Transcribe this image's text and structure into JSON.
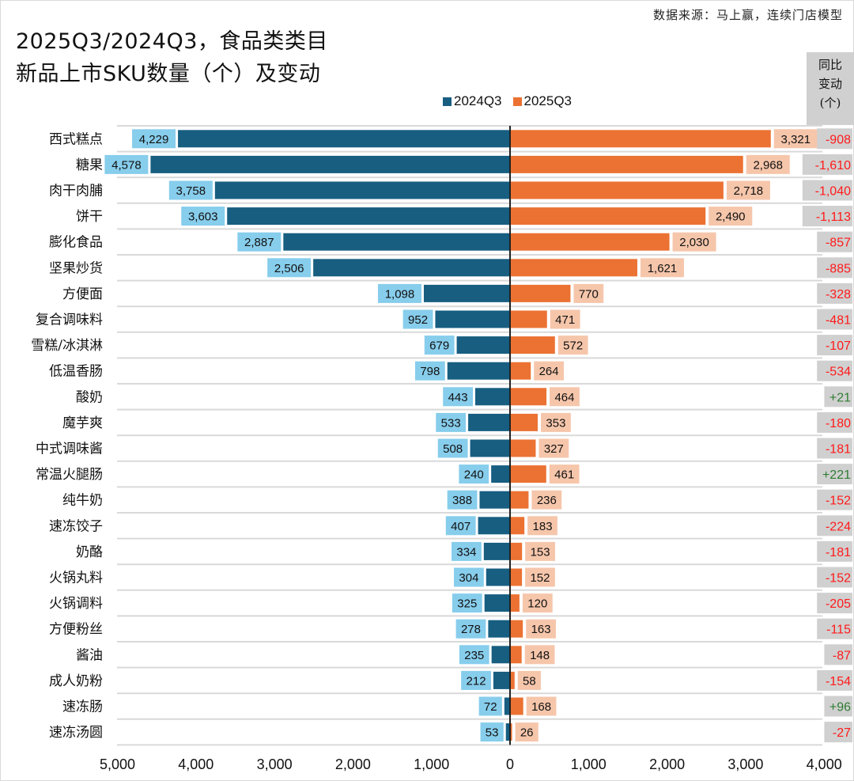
{
  "header": {
    "source": "数据来源：马上赢，连续门店模型",
    "title_line1": "2025Q3/2024Q3，食品类类目",
    "title_line2": "新品上市SKU数量（个）及变动",
    "diff_header": [
      "同比",
      "变动",
      "(个)"
    ]
  },
  "colors": {
    "series_2024": "#175e81",
    "series_2025": "#eb7233",
    "label_bg_2024": "#87cdec",
    "label_bg_2025": "#f6c6ab",
    "diff_bg": "#d0d0d0",
    "diff_negative": "#ff1a1a",
    "diff_positive": "#2e7d32",
    "gridline": "#d9d9d9"
  },
  "chart_data": {
    "type": "bar",
    "orientation": "horizontal-diverging",
    "title": "2025Q3/2024Q3，食品类类目 新品上市SKU数量（个）及变动",
    "xlabel": "",
    "ylabel": "",
    "legend_position": "top",
    "xlim": [
      -5000,
      4000
    ],
    "x_ticks": [
      "5,000",
      "4,000",
      "3,000",
      "2,000",
      "1,000",
      "0",
      "1,000",
      "2,000",
      "3,000",
      "4,000"
    ],
    "x_tick_values": [
      -5000,
      -4000,
      -3000,
      -2000,
      -1000,
      0,
      1000,
      2000,
      3000,
      4000
    ],
    "categories": [
      "西式糕点",
      "糖果",
      "肉干肉脯",
      "饼干",
      "膨化食品",
      "坚果炒货",
      "方便面",
      "复合调味料",
      "雪糕/冰淇淋",
      "低温香肠",
      "酸奶",
      "魔芋爽",
      "中式调味酱",
      "常温火腿肠",
      "纯牛奶",
      "速冻饺子",
      "奶酪",
      "火锅丸料",
      "火锅调料",
      "方便粉丝",
      "酱油",
      "成人奶粉",
      "速冻肠",
      "速冻汤圆"
    ],
    "series": [
      {
        "name": "2024Q3",
        "side": "left",
        "values": [
          4229,
          4578,
          3758,
          3603,
          2887,
          2506,
          1098,
          952,
          679,
          798,
          443,
          533,
          508,
          240,
          388,
          407,
          334,
          304,
          325,
          278,
          235,
          212,
          72,
          53
        ],
        "labels": [
          "4,229",
          "4,578",
          "3,758",
          "3,603",
          "2,887",
          "2,506",
          "1,098",
          "952",
          "679",
          "798",
          "443",
          "533",
          "508",
          "240",
          "388",
          "407",
          "334",
          "304",
          "325",
          "278",
          "235",
          "212",
          "72",
          "53"
        ]
      },
      {
        "name": "2025Q3",
        "side": "right",
        "values": [
          3321,
          2968,
          2718,
          2490,
          2030,
          1621,
          770,
          471,
          572,
          264,
          464,
          353,
          327,
          461,
          236,
          183,
          153,
          152,
          120,
          163,
          148,
          58,
          168,
          26
        ],
        "labels": [
          "3,321",
          "2,968",
          "2,718",
          "2,490",
          "2,030",
          "1,621",
          "770",
          "471",
          "572",
          "264",
          "464",
          "353",
          "327",
          "461",
          "236",
          "183",
          "153",
          "152",
          "120",
          "163",
          "148",
          "58",
          "168",
          "26"
        ]
      }
    ],
    "yoy_change": {
      "name": "同比变动(个)",
      "values": [
        -908,
        -1610,
        -1040,
        -1113,
        -857,
        -885,
        -328,
        -481,
        -107,
        -534,
        21,
        -180,
        -181,
        221,
        -152,
        -224,
        -181,
        -152,
        -205,
        -115,
        -87,
        -154,
        96,
        -27
      ],
      "labels": [
        "-908",
        "-1,610",
        "-1,040",
        "-1,113",
        "-857",
        "-885",
        "-328",
        "-481",
        "-107",
        "-534",
        "+21",
        "-180",
        "-181",
        "+221",
        "-152",
        "-224",
        "-181",
        "-152",
        "-205",
        "-115",
        "-87",
        "-154",
        "+96",
        "-27"
      ]
    }
  }
}
